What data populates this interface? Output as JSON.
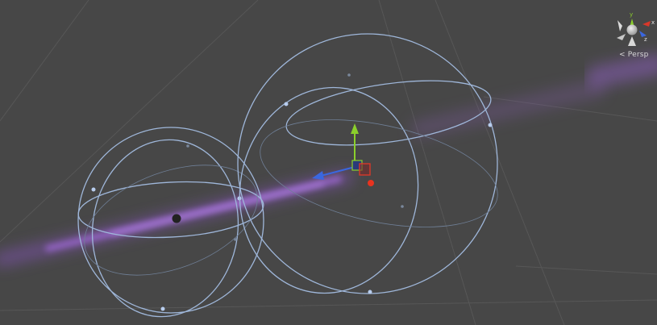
{
  "scene_view": {
    "projection_label": "< Persp",
    "orientation_gizmo": {
      "x_label": "x",
      "y_label": "y",
      "z_label": "z"
    },
    "colors": {
      "background": "#474747",
      "sphere_wire": "#9fb7da",
      "particle": "#9a63d4",
      "axis_x": "#d8382a",
      "axis_y": "#8bcf2c",
      "axis_z": "#3a67e0",
      "grid": "#5a5a5a"
    },
    "icons": [
      "move-tool-gizmo-icon",
      "orientation-gizmo-icon",
      "particle-stream",
      "sphere-collider-wireframe"
    ]
  }
}
